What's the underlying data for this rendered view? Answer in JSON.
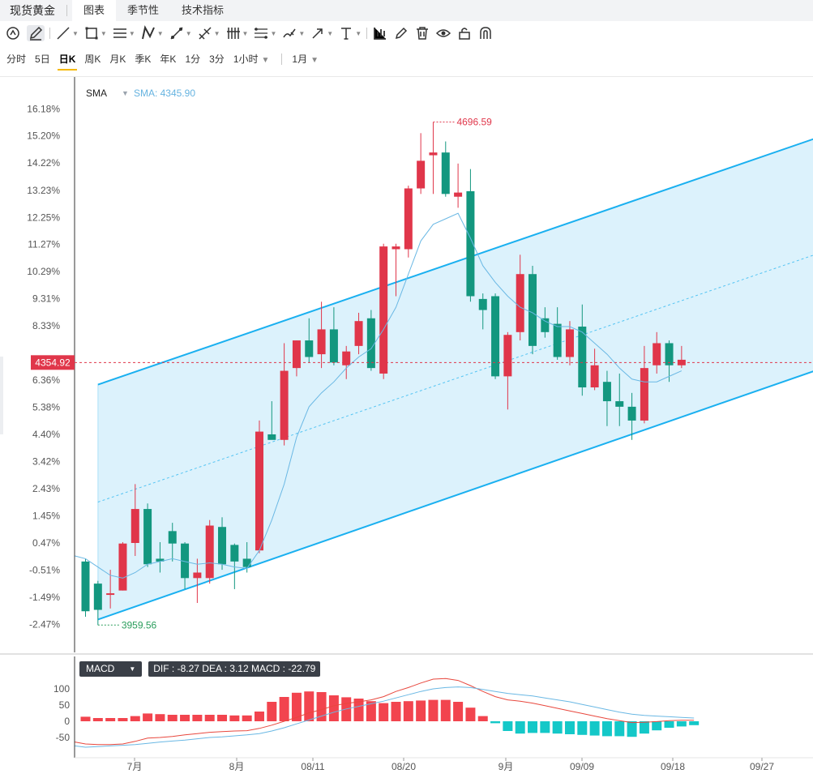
{
  "header": {
    "app_title": "现货黄金",
    "tabs": [
      {
        "label": "图表",
        "active": true
      },
      {
        "label": "季节性",
        "active": false
      },
      {
        "label": "技术指标",
        "active": false
      }
    ]
  },
  "toolbar": {
    "tools": [
      "cursor-icon",
      "pen-icon",
      "line-icon",
      "rect-icon",
      "parallel-lines-icon",
      "polyline-icon",
      "measure-icon",
      "fork-icon",
      "bars-icon",
      "fib-icon",
      "brush-icon",
      "arrow-icon",
      "text-icon",
      "indicator-icon",
      "edit-icon",
      "trash-icon",
      "eye-icon",
      "lock-icon",
      "magnet-icon"
    ]
  },
  "periods": {
    "items": [
      "分时",
      "5日",
      "日K",
      "周K",
      "月K",
      "季K",
      "年K",
      "1分",
      "3分",
      "1小时"
    ],
    "active": "日K",
    "range": "1月"
  },
  "legend": {
    "name": "SMA",
    "value_text": "SMA: 4345.90"
  },
  "macd_legend": {
    "indicator": "MACD",
    "values_text": "DIF : -8.27  DEA : 3.12  MACD : -22.79"
  },
  "colors": {
    "up": "#e0364a",
    "down": "#13977f",
    "channel": "#1ab0f0",
    "channel_fill": "#d8f1fc",
    "sma": "#6ab8e4",
    "last_price": "#e0364a"
  },
  "chart_data": [
    {
      "type": "candlestick",
      "y_axis": {
        "type": "percent_change",
        "ticks": [
          "16.18%",
          "15.20%",
          "14.22%",
          "13.23%",
          "12.25%",
          "11.27%",
          "10.29%",
          "9.31%",
          "8.33%",
          "6.36%",
          "5.38%",
          "4.40%",
          "3.42%",
          "2.43%",
          "1.45%",
          "0.47%",
          "-0.51%",
          "-1.49%",
          "-2.47%"
        ]
      },
      "x_axis": {
        "ticks": [
          "7月",
          "8月",
          "08/11",
          "08/20",
          "9月",
          "09/09",
          "09/18",
          "09/27"
        ]
      },
      "candles": [
        {
          "o": -0.2,
          "h": -0.1,
          "l": -2.2,
          "c": -2.0
        },
        {
          "o": -1.0,
          "h": -0.9,
          "l": -2.5,
          "c": -1.95
        },
        {
          "o": -1.4,
          "h": -0.5,
          "l": -1.9,
          "c": -1.35
        },
        {
          "o": -1.25,
          "h": 0.5,
          "l": -1.25,
          "c": 0.45
        },
        {
          "o": 0.47,
          "h": 2.6,
          "l": 0.0,
          "c": 1.7
        },
        {
          "o": 1.7,
          "h": 1.9,
          "l": -0.4,
          "c": -0.3
        },
        {
          "o": -0.1,
          "h": 0.5,
          "l": -0.6,
          "c": -0.2
        },
        {
          "o": 0.9,
          "h": 1.2,
          "l": -0.2,
          "c": 0.45
        },
        {
          "o": 0.45,
          "h": 0.5,
          "l": -1.2,
          "c": -0.8
        },
        {
          "o": -0.8,
          "h": -0.1,
          "l": -1.7,
          "c": -0.6
        },
        {
          "o": -0.8,
          "h": 1.3,
          "l": -1.0,
          "c": 1.1
        },
        {
          "o": 1.05,
          "h": 1.4,
          "l": -0.5,
          "c": -0.3
        },
        {
          "o": 0.4,
          "h": 0.45,
          "l": -1.2,
          "c": -0.2
        },
        {
          "o": -0.1,
          "h": 0.5,
          "l": -0.6,
          "c": -0.4
        },
        {
          "o": 0.2,
          "h": 4.9,
          "l": 0.1,
          "c": 4.5
        },
        {
          "o": 4.4,
          "h": 5.6,
          "l": 4.3,
          "c": 4.2
        },
        {
          "o": 4.2,
          "h": 7.7,
          "l": 4.0,
          "c": 6.7
        },
        {
          "o": 6.8,
          "h": 7.8,
          "l": 6.5,
          "c": 7.8
        },
        {
          "o": 7.8,
          "h": 8.6,
          "l": 7.0,
          "c": 7.2
        },
        {
          "o": 7.3,
          "h": 9.2,
          "l": 6.8,
          "c": 8.2
        },
        {
          "o": 8.2,
          "h": 9.0,
          "l": 6.9,
          "c": 7.0
        },
        {
          "o": 6.9,
          "h": 7.6,
          "l": 6.4,
          "c": 7.4
        },
        {
          "o": 7.6,
          "h": 8.8,
          "l": 7.3,
          "c": 8.5
        },
        {
          "o": 8.6,
          "h": 8.9,
          "l": 6.7,
          "c": 6.8
        },
        {
          "o": 6.6,
          "h": 11.3,
          "l": 6.4,
          "c": 11.2
        },
        {
          "o": 11.1,
          "h": 11.3,
          "l": 9.4,
          "c": 11.2
        },
        {
          "o": 11.1,
          "h": 13.4,
          "l": 10.8,
          "c": 13.3
        },
        {
          "o": 13.3,
          "h": 15.3,
          "l": 13.1,
          "c": 14.3
        },
        {
          "o": 14.5,
          "h": 15.7,
          "l": 13.1,
          "c": 14.6
        },
        {
          "o": 14.6,
          "h": 15.0,
          "l": 13.0,
          "c": 13.1
        },
        {
          "o": 13.0,
          "h": 14.2,
          "l": 12.6,
          "c": 13.15
        },
        {
          "o": 13.2,
          "h": 14.0,
          "l": 9.2,
          "c": 9.4
        },
        {
          "o": 9.3,
          "h": 9.5,
          "l": 8.2,
          "c": 8.9
        },
        {
          "o": 9.4,
          "h": 9.5,
          "l": 6.4,
          "c": 6.5
        },
        {
          "o": 6.5,
          "h": 8.1,
          "l": 5.3,
          "c": 8.0
        },
        {
          "o": 8.1,
          "h": 10.9,
          "l": 7.8,
          "c": 10.2
        },
        {
          "o": 10.2,
          "h": 10.5,
          "l": 7.3,
          "c": 7.6
        },
        {
          "o": 8.6,
          "h": 9.0,
          "l": 7.9,
          "c": 8.1
        },
        {
          "o": 8.4,
          "h": 9.0,
          "l": 7.1,
          "c": 7.2
        },
        {
          "o": 7.2,
          "h": 8.5,
          "l": 6.9,
          "c": 8.2
        },
        {
          "o": 8.3,
          "h": 9.1,
          "l": 5.8,
          "c": 6.1
        },
        {
          "o": 6.1,
          "h": 7.5,
          "l": 6.0,
          "c": 6.9
        },
        {
          "o": 6.3,
          "h": 6.7,
          "l": 4.7,
          "c": 5.6
        },
        {
          "o": 5.6,
          "h": 6.6,
          "l": 4.7,
          "c": 5.4
        },
        {
          "o": 5.4,
          "h": 5.9,
          "l": 4.2,
          "c": 4.9
        },
        {
          "o": 4.9,
          "h": 7.6,
          "l": 4.8,
          "c": 6.8
        },
        {
          "o": 6.9,
          "h": 8.1,
          "l": 6.6,
          "c": 7.7
        },
        {
          "o": 7.7,
          "h": 7.8,
          "l": 6.3,
          "c": 6.9
        },
        {
          "o": 6.9,
          "h": 7.6,
          "l": 6.8,
          "c": 7.1
        }
      ],
      "sma": [
        -0.1,
        -0.4,
        -0.7,
        -0.8,
        -0.6,
        -0.3,
        -0.2,
        -0.1,
        -0.2,
        -0.3,
        -0.25,
        -0.3,
        -0.4,
        -0.45,
        0.2,
        1.3,
        2.6,
        4.3,
        5.4,
        5.9,
        6.3,
        6.8,
        7.2,
        7.5,
        8.2,
        9.0,
        10.2,
        11.4,
        12.0,
        12.2,
        12.4,
        11.5,
        10.5,
        9.9,
        9.4,
        9.0,
        8.8,
        8.5,
        8.3,
        8.3,
        8.1,
        7.7,
        7.3,
        6.8,
        6.4,
        6.3,
        6.3,
        6.5,
        6.7
      ],
      "annotations": [
        {
          "label": "4696.59",
          "kind": "high",
          "candle": 28
        },
        {
          "label": "3959.56",
          "kind": "low",
          "candle": 1
        }
      ],
      "last_price": {
        "label": "4354.92",
        "value": 7.0
      },
      "channel": {
        "start_candle": 1,
        "end_candle": 60,
        "lower_start": -2.3,
        "lower_end": 6.9,
        "upper_start": 6.2,
        "upper_end": 15.3
      }
    },
    {
      "type": "bar",
      "name": "MACD",
      "y_axis": {
        "ticks": [
          "100",
          "50",
          "0",
          "-50"
        ]
      },
      "histogram": [
        14,
        10,
        10,
        10,
        16,
        24,
        22,
        20,
        20,
        20,
        20,
        20,
        18,
        18,
        30,
        60,
        75,
        88,
        92,
        90,
        80,
        74,
        70,
        62,
        56,
        60,
        62,
        64,
        66,
        66,
        60,
        42,
        16,
        -6,
        -30,
        -38,
        -36,
        -36,
        -38,
        -40,
        -42,
        -44,
        -46,
        -46,
        -48,
        -38,
        -28,
        -20,
        -16,
        -12
      ],
      "dif": [
        -70,
        -72,
        -72,
        -70,
        -62,
        -52,
        -50,
        -47,
        -42,
        -38,
        -34,
        -32,
        -30,
        -29,
        -22,
        -12,
        0,
        12,
        26,
        36,
        48,
        55,
        60,
        66,
        76,
        92,
        104,
        118,
        130,
        132,
        126,
        110,
        92,
        76,
        66,
        62,
        56,
        48,
        40,
        32,
        24,
        16,
        8,
        2,
        -4,
        -3,
        -1,
        2,
        3,
        3
      ],
      "dea": [
        -80,
        -78,
        -76,
        -74,
        -72,
        -68,
        -64,
        -61,
        -58,
        -54,
        -50,
        -48,
        -45,
        -42,
        -38,
        -30,
        -20,
        -8,
        4,
        16,
        28,
        38,
        46,
        54,
        62,
        72,
        82,
        92,
        100,
        104,
        106,
        104,
        98,
        92,
        86,
        82,
        78,
        72,
        66,
        60,
        52,
        44,
        36,
        28,
        22,
        18,
        16,
        14,
        12,
        10
      ]
    }
  ]
}
